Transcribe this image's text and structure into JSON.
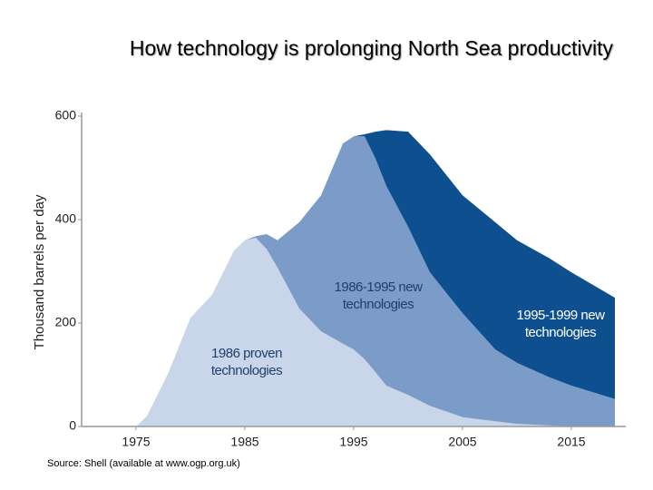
{
  "chart_data": {
    "type": "stacked_area",
    "title": "How technology is prolonging North Sea productivity",
    "y_label": "Thousand barrels per day",
    "source": "Source: Shell (available at www.ogp.org.uk)",
    "x": [
      1975,
      1976,
      1978,
      1980,
      1982,
      1984,
      1985,
      1986,
      1987,
      1988,
      1990,
      1992,
      1994,
      1995,
      1996,
      1997,
      1998,
      2000,
      2002,
      2005,
      2008,
      2010,
      2013,
      2015,
      2019
    ],
    "series": [
      {
        "name": "1986 proven technologies",
        "color": "#c9d5e8",
        "values": [
          0,
          20,
          105,
          210,
          255,
          340,
          360,
          365,
          343,
          307,
          228,
          184,
          160,
          149,
          130,
          105,
          79,
          61,
          40,
          18,
          10,
          5,
          2,
          0,
          0
        ]
      },
      {
        "name": "1986-1995 new technologies",
        "color": "#7b9cc8",
        "values": [
          0,
          0,
          0,
          0,
          0,
          0,
          0,
          3,
          29,
          53,
          167,
          263,
          387,
          412,
          431,
          413,
          386,
          325,
          258,
          201,
          139,
          118,
          93,
          79,
          53
        ]
      },
      {
        "name": "1995-1999 new technologies",
        "color": "#0d4f8f",
        "values": [
          0,
          0,
          0,
          0,
          0,
          0,
          0,
          0,
          0,
          0,
          0,
          0,
          0,
          0,
          4,
          52,
          108,
          184,
          228,
          228,
          246,
          237,
          230,
          219,
          196
        ]
      }
    ],
    "xlim": [
      1970,
      2020
    ],
    "xticks": [
      1975,
      1985,
      1995,
      2005,
      2015
    ],
    "ylim": [
      0,
      600
    ],
    "yticks": [
      0,
      200,
      400,
      600
    ]
  }
}
